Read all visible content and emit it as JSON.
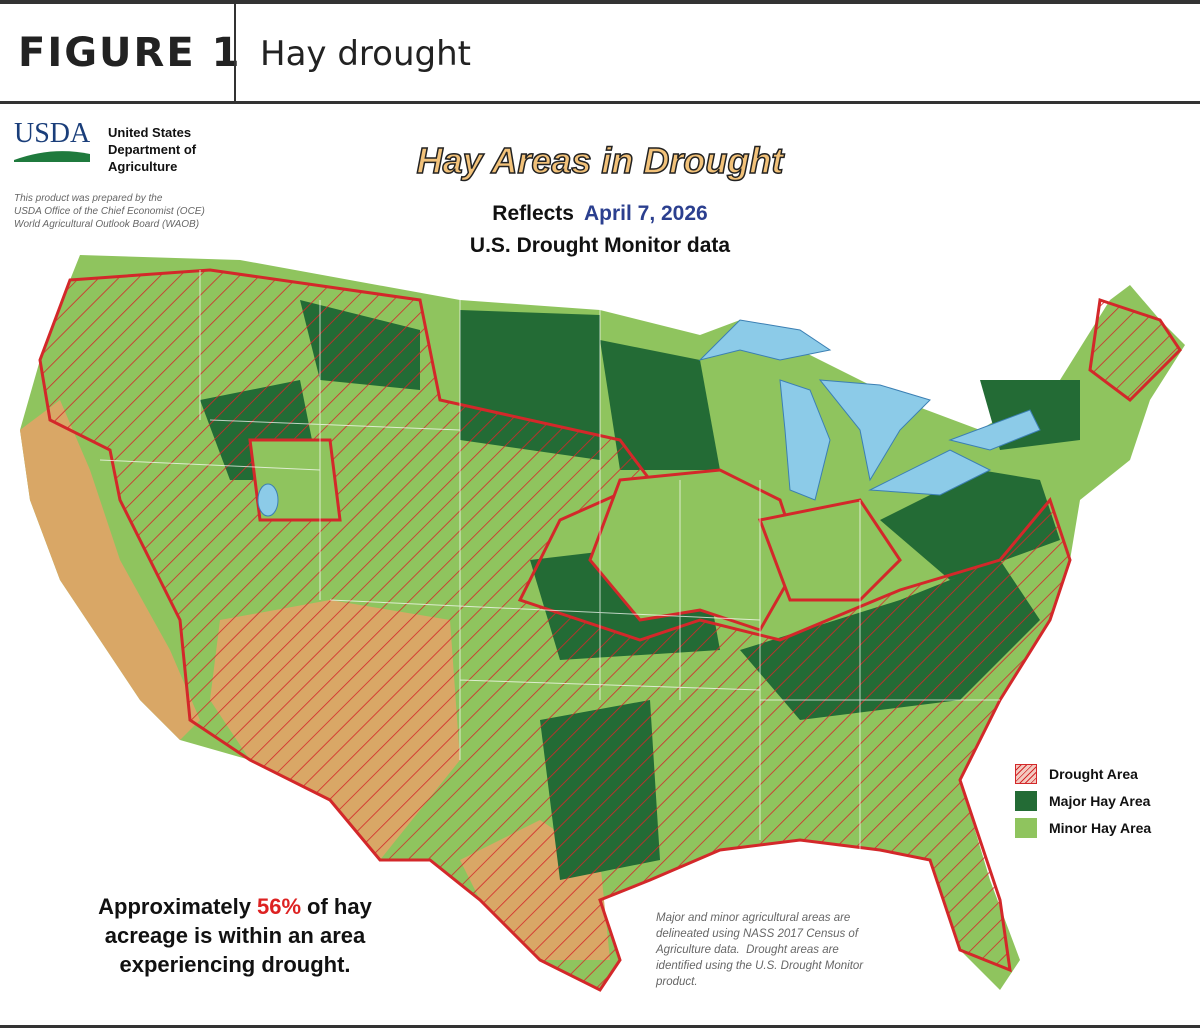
{
  "header": {
    "figure": "FIGURE 1",
    "caption": "Hay drought"
  },
  "agency": {
    "logo": "USDA",
    "name": [
      "United States",
      "Department of",
      "Agriculture"
    ]
  },
  "credit": [
    "This product was prepared by the",
    "USDA Office of the Chief Economist (OCE)",
    "World Agricultural Outlook Board (WAOB)"
  ],
  "map": {
    "title": "Hay Areas in Drought",
    "reflects": "Reflects",
    "date": "April 7, 2026",
    "source": "U.S. Drought Monitor data"
  },
  "legend": [
    "Drought Area",
    "Major Hay Area",
    "Minor Hay Area"
  ],
  "summary": {
    "lead": "Approximately",
    "share": "56%",
    "rest": "of hay",
    "lines": [
      "acreage is within an area",
      "experiencing drought."
    ]
  },
  "footnote": [
    "Major and minor agricultural areas are",
    "delineated using NASS 2017 Census of",
    "Agriculture data.  Drought areas are",
    "identified using the U.S. Drought Monitor",
    "product."
  ]
}
